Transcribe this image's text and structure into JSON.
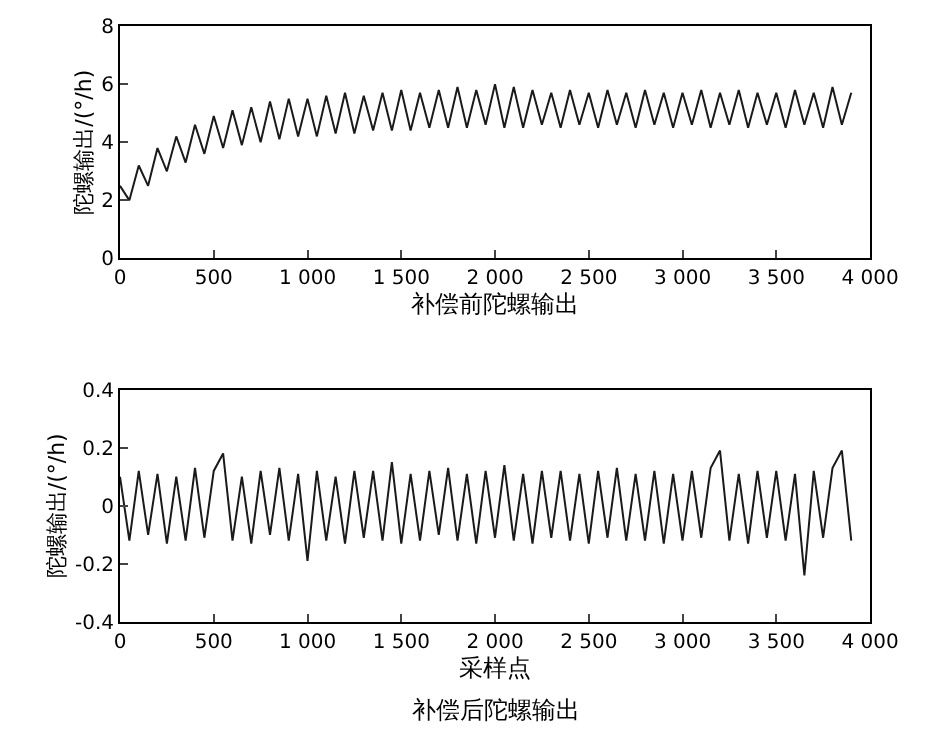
{
  "chart_data": [
    {
      "type": "line",
      "xlabel": "补偿前陀螺输出",
      "ylabel": "陀螺输出/(°/h)",
      "marker": "none",
      "line_style": "solid",
      "x": [
        0,
        50,
        100,
        150,
        200,
        250,
        300,
        350,
        400,
        450,
        500,
        550,
        600,
        650,
        700,
        750,
        800,
        850,
        900,
        950,
        1000,
        1050,
        1100,
        1150,
        1200,
        1250,
        1300,
        1350,
        1400,
        1450,
        1500,
        1550,
        1600,
        1650,
        1700,
        1750,
        1800,
        1850,
        1900,
        1950,
        2000,
        2050,
        2100,
        2150,
        2200,
        2250,
        2300,
        2350,
        2400,
        2450,
        2500,
        2550,
        2600,
        2650,
        2700,
        2750,
        2800,
        2850,
        2900,
        2950,
        3000,
        3050,
        3100,
        3150,
        3200,
        3250,
        3300,
        3350,
        3400,
        3450,
        3500,
        3550,
        3600,
        3650,
        3700,
        3750,
        3800,
        3850,
        3900
      ],
      "series": [
        {
          "color": "#1a1a1a",
          "values": [
            2.5,
            2.0,
            3.2,
            2.5,
            3.8,
            3.0,
            4.2,
            3.3,
            4.6,
            3.6,
            4.9,
            3.8,
            5.1,
            3.9,
            5.2,
            4.0,
            5.4,
            4.1,
            5.5,
            4.2,
            5.5,
            4.2,
            5.6,
            4.3,
            5.7,
            4.3,
            5.6,
            4.4,
            5.7,
            4.4,
            5.8,
            4.4,
            5.7,
            4.5,
            5.8,
            4.5,
            5.9,
            4.5,
            5.8,
            4.6,
            6.0,
            4.5,
            5.9,
            4.5,
            5.8,
            4.6,
            5.7,
            4.5,
            5.8,
            4.6,
            5.7,
            4.5,
            5.8,
            4.6,
            5.7,
            4.5,
            5.8,
            4.6,
            5.7,
            4.5,
            5.7,
            4.6,
            5.8,
            4.5,
            5.7,
            4.6,
            5.8,
            4.5,
            5.7,
            4.6,
            5.7,
            4.5,
            5.8,
            4.6,
            5.7,
            4.5,
            5.9,
            4.6,
            5.7
          ]
        }
      ],
      "xlim": [
        0,
        4000
      ],
      "xticks": [
        0,
        500,
        {
          "value": 1000,
          "label": "1 000"
        },
        {
          "value": 1500,
          "label": "1 500"
        },
        {
          "value": 2000,
          "label": "2 000"
        },
        {
          "value": 2500,
          "label": "2 500"
        },
        {
          "value": 3000,
          "label": "3 000"
        },
        {
          "value": 3500,
          "label": "3 500"
        },
        {
          "value": 4000,
          "label": "4 000"
        }
      ],
      "ylim": [
        0,
        8
      ],
      "yticks": [
        0,
        2,
        4,
        6,
        8
      ]
    },
    {
      "type": "line",
      "xlabel": "采样点",
      "ylabel": "陀螺输出/(°/h)",
      "annotations": [
        "补偿后陀螺输出"
      ],
      "marker": "none",
      "line_style": "solid",
      "x": [
        0,
        50,
        100,
        150,
        200,
        250,
        300,
        350,
        400,
        450,
        500,
        550,
        600,
        650,
        700,
        750,
        800,
        850,
        900,
        950,
        1000,
        1050,
        1100,
        1150,
        1200,
        1250,
        1300,
        1350,
        1400,
        1450,
        1500,
        1550,
        1600,
        1650,
        1700,
        1750,
        1800,
        1850,
        1900,
        1950,
        2000,
        2050,
        2100,
        2150,
        2200,
        2250,
        2300,
        2350,
        2400,
        2450,
        2500,
        2550,
        2600,
        2650,
        2700,
        2750,
        2800,
        2850,
        2900,
        2950,
        3000,
        3050,
        3100,
        3150,
        3200,
        3250,
        3300,
        3350,
        3400,
        3450,
        3500,
        3550,
        3600,
        3650,
        3700,
        3750,
        3800,
        3850,
        3900
      ],
      "series": [
        {
          "color": "#1a1a1a",
          "values": [
            0.1,
            -0.12,
            0.12,
            -0.1,
            0.11,
            -0.13,
            0.1,
            -0.12,
            0.13,
            -0.11,
            0.12,
            0.18,
            -0.12,
            0.1,
            -0.13,
            0.12,
            -0.1,
            0.13,
            -0.12,
            0.11,
            -0.19,
            0.12,
            -0.12,
            0.1,
            -0.13,
            0.12,
            -0.11,
            0.12,
            -0.12,
            0.15,
            -0.13,
            0.11,
            -0.12,
            0.12,
            -0.1,
            0.13,
            -0.12,
            0.11,
            -0.13,
            0.12,
            -0.11,
            0.14,
            -0.12,
            0.11,
            -0.13,
            0.12,
            -0.11,
            0.12,
            -0.12,
            0.11,
            -0.13,
            0.12,
            -0.11,
            0.13,
            -0.12,
            0.11,
            -0.12,
            0.12,
            -0.13,
            0.11,
            -0.12,
            0.12,
            -0.11,
            0.13,
            0.19,
            -0.12,
            0.11,
            -0.13,
            0.12,
            -0.11,
            0.12,
            -0.12,
            0.11,
            -0.24,
            0.12,
            -0.11,
            0.13,
            0.19,
            -0.12
          ]
        }
      ],
      "xlim": [
        0,
        4000
      ],
      "xticks": [
        0,
        500,
        {
          "value": 1000,
          "label": "1 000"
        },
        {
          "value": 1500,
          "label": "1 500"
        },
        {
          "value": 2000,
          "label": "2 000"
        },
        {
          "value": 2500,
          "label": "2 500"
        },
        {
          "value": 3000,
          "label": "3 000"
        },
        {
          "value": 3500,
          "label": "3 500"
        },
        {
          "value": 4000,
          "label": "4 000"
        }
      ],
      "ylim": [
        -0.4,
        0.4
      ],
      "yticks": [
        -0.4,
        -0.2,
        0,
        0.2,
        0.4
      ]
    }
  ]
}
